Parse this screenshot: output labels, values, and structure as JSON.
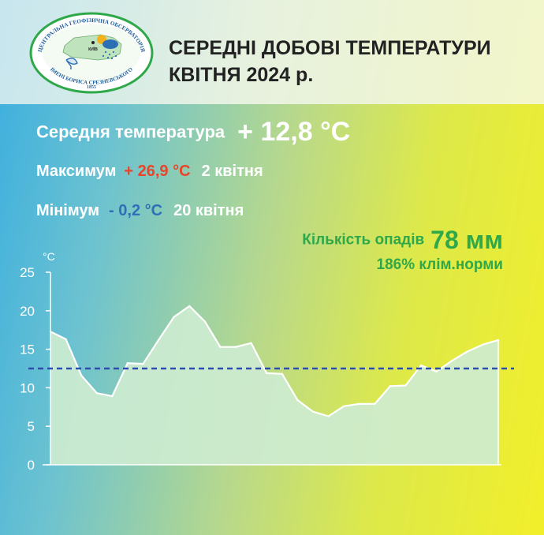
{
  "header": {
    "logo_text_top": "ЦЕНТРАЛЬНА ГЕОФІЗИЧНА ОБСЕРВАТОРІЯ",
    "logo_text_bottom": "ІМЕНІ БОРИСА СРЕЗНЕВСЬКОГО",
    "logo_city": "КИЇВ",
    "logo_year": "1855",
    "title_line1": "СЕРЕДНІ ДОБОВІ ТЕМПЕРАТУРИ",
    "title_line2": "КВІТНЯ 2024 р."
  },
  "stats": {
    "avg_label": "Середня температура",
    "avg_value": "+ 12,8 °C",
    "max_label": "Максимум",
    "max_value": "+ 26,9 °C",
    "max_date": "2 квітня",
    "min_label": "Мінімум",
    "min_value": "- 0,2 °C",
    "min_date": "20 квітня",
    "precip_label": "Кількість опадів",
    "precip_value": "78 мм",
    "precip_pct": "186% клім.норми"
  },
  "colors": {
    "max": "#e8442a",
    "min": "#2e6fb7",
    "precip": "#2fa84a",
    "area_fill": "#cdebd0",
    "mean_line": "#2e4fa8"
  },
  "chart_data": {
    "type": "area",
    "unit_label": "°C",
    "ylim": [
      0,
      25
    ],
    "yticks": [
      0,
      5,
      10,
      15,
      20,
      25
    ],
    "x": [
      1,
      2,
      3,
      4,
      5,
      6,
      7,
      8,
      9,
      10,
      11,
      12,
      13,
      14,
      15,
      16,
      17,
      18,
      19,
      20,
      21,
      22,
      23,
      24,
      25,
      26,
      27,
      28,
      29,
      30
    ],
    "values": [
      17.3,
      16.3,
      11.6,
      9.3,
      8.9,
      13.2,
      13.1,
      16.2,
      19.2,
      20.6,
      18.6,
      15.3,
      15.3,
      15.8,
      11.9,
      11.8,
      8.4,
      6.9,
      6.3,
      7.6,
      7.9,
      7.9,
      10.2,
      10.3,
      12.9,
      12.1,
      13.5,
      14.7,
      15.6,
      16.2
    ],
    "mean": 12.5,
    "grid": false
  }
}
